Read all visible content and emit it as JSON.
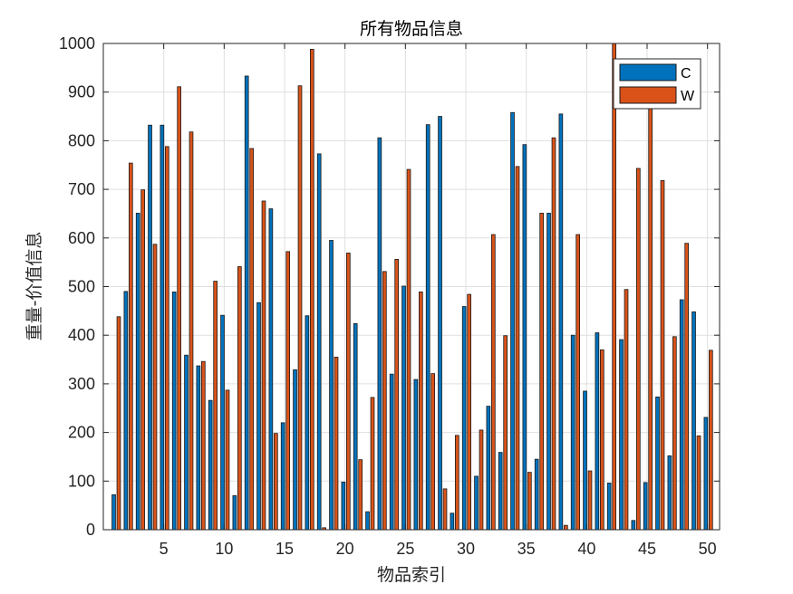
{
  "chart_data": {
    "type": "bar",
    "title": "所有物品信息",
    "xlabel": "物品索引",
    "ylabel": "重量-价值信息",
    "xlim": [
      0,
      51
    ],
    "ylim": [
      0,
      1000
    ],
    "xticks": [
      5,
      10,
      15,
      20,
      25,
      30,
      35,
      40,
      45,
      50
    ],
    "yticks": [
      0,
      100,
      200,
      300,
      400,
      500,
      600,
      700,
      800,
      900,
      1000
    ],
    "grid": true,
    "legend_position": "top-right",
    "x": [
      1,
      2,
      3,
      4,
      5,
      6,
      7,
      8,
      9,
      10,
      11,
      12,
      13,
      14,
      15,
      16,
      17,
      18,
      19,
      20,
      21,
      22,
      23,
      24,
      25,
      26,
      27,
      28,
      29,
      30,
      31,
      32,
      33,
      34,
      35,
      36,
      37,
      38,
      39,
      40,
      41,
      42,
      43,
      44,
      45,
      46,
      47,
      48,
      49,
      50
    ],
    "series": [
      {
        "name": "C",
        "color": "#0072bd",
        "values": [
          72,
          490,
          651,
          832,
          832,
          489,
          359,
          337,
          266,
          441,
          70,
          933,
          467,
          660,
          220,
          329,
          440,
          773,
          595,
          98,
          424,
          37,
          806,
          320,
          501,
          309,
          833,
          850,
          34,
          459,
          110,
          254,
          159,
          858,
          792,
          145,
          651,
          855,
          400,
          285,
          405,
          96,
          391,
          19,
          97,
          273,
          152,
          473,
          448,
          231
        ]
      },
      {
        "name": "W",
        "color": "#d95319",
        "values": [
          438,
          754,
          699,
          587,
          788,
          911,
          818,
          346,
          511,
          287,
          541,
          784,
          676,
          198,
          572,
          913,
          988,
          4,
          355,
          569,
          144,
          272,
          531,
          556,
          741,
          489,
          321,
          84,
          194,
          484,
          205,
          607,
          399,
          747,
          118,
          651,
          806,
          9,
          607,
          121,
          370,
          1000,
          494,
          743,
          870,
          718,
          397,
          589,
          193,
          369
        ]
      }
    ]
  }
}
